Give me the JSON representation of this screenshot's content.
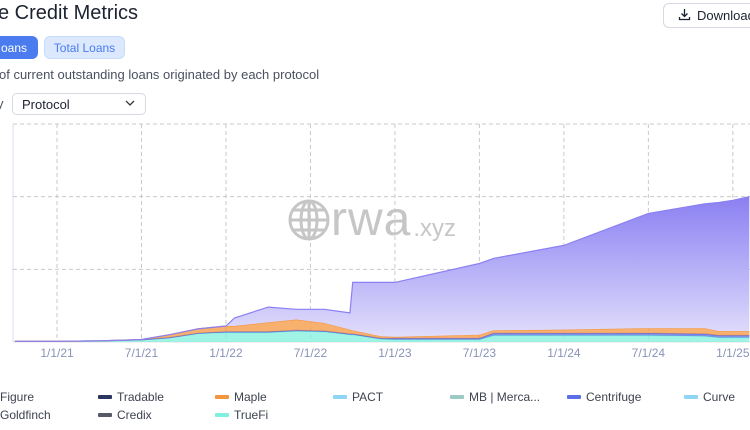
{
  "header": {
    "title": "e Credit Metrics",
    "download_label": "Download"
  },
  "tabs": [
    {
      "label": "oans",
      "active": true
    },
    {
      "label": "Total Loans",
      "active": false
    }
  ],
  "description": "of current outstanding loans originated by each protocol",
  "group_by": {
    "label": "y",
    "value": "Protocol"
  },
  "watermark": {
    "logo_text": "rwa",
    "suffix": ".xyz"
  },
  "colors": {
    "figure": "#8a80f2",
    "maple": "#f5963f",
    "truefi": "#7ff0de",
    "centrifuge": "#5d6fe6",
    "grid": "#c9c9c9"
  },
  "legend": [
    {
      "label": "Figure",
      "color": "#8a80f2"
    },
    {
      "label": "Tradable",
      "color": "#2a3560"
    },
    {
      "label": "Maple",
      "color": "#f5963f"
    },
    {
      "label": "PACT",
      "color": "#8fd6f5"
    },
    {
      "label": "MB | Merca...",
      "color": "#9cc9c4"
    },
    {
      "label": "Centrifuge",
      "color": "#5d6fe6"
    },
    {
      "label": "Curve",
      "color": "#8fd6f5"
    },
    {
      "label": "Goldfinch",
      "color": "#c9a23a"
    },
    {
      "label": "Credix",
      "color": "#555a66"
    },
    {
      "label": "TrueFi",
      "color": "#7ff0de"
    }
  ],
  "chart_data": {
    "type": "area",
    "stacked": true,
    "title": "",
    "xlabel": "",
    "ylabel": "",
    "x_ticks": [
      "1/1/21",
      "7/1/21",
      "1/1/22",
      "7/1/22",
      "1/1/23",
      "7/1/23",
      "1/1/24",
      "7/1/24",
      "1/1/25"
    ],
    "ylim": [
      0,
      3
    ],
    "y_gridlines": [
      1,
      2,
      3
    ],
    "grid": true,
    "legend_position": "bottom",
    "x": [
      "2020-10-01",
      "2021-01-01",
      "2021-04-01",
      "2021-07-01",
      "2021-09-01",
      "2021-11-01",
      "2022-01-01",
      "2022-01-19",
      "2022-04-01",
      "2022-06-01",
      "2022-08-01",
      "2022-09-25",
      "2022-10-01",
      "2022-12-01",
      "2023-01-01",
      "2023-07-01",
      "2023-08-01",
      "2024-01-01",
      "2024-07-01",
      "2024-11-01",
      "2024-12-01",
      "2025-01-01",
      "2025-02-06"
    ],
    "series": [
      {
        "name": "TrueFi",
        "color": "#7ff0de",
        "values": [
          0.01,
          0.01,
          0.015,
          0.03,
          0.06,
          0.12,
          0.13,
          0.13,
          0.13,
          0.15,
          0.14,
          0.1,
          0.1,
          0.04,
          0.03,
          0.03,
          0.09,
          0.09,
          0.09,
          0.08,
          0.06,
          0.06,
          0.06
        ]
      },
      {
        "name": "Centrifuge",
        "color": "#5d6fe6",
        "values": [
          0,
          0,
          0,
          0,
          0,
          0,
          0.01,
          0.01,
          0.01,
          0.01,
          0.01,
          0.01,
          0.01,
          0.01,
          0.02,
          0.02,
          0.03,
          0.03,
          0.03,
          0.03,
          0.03,
          0.03,
          0.03
        ]
      },
      {
        "name": "Maple",
        "color": "#f5963f",
        "values": [
          0,
          0,
          0,
          0.005,
          0.04,
          0.06,
          0.08,
          0.08,
          0.13,
          0.15,
          0.11,
          0.06,
          0.05,
          0.03,
          0.02,
          0.05,
          0.04,
          0.05,
          0.07,
          0.08,
          0.06,
          0.06,
          0.06
        ]
      },
      {
        "name": "Figure",
        "color": "#8a80f2",
        "values": [
          0,
          0,
          0,
          0,
          0,
          0,
          0,
          0.11,
          0.21,
          0.14,
          0.19,
          0.23,
          0.66,
          0.74,
          0.75,
          0.98,
          0.99,
          1.16,
          1.58,
          1.71,
          1.77,
          1.8,
          1.85
        ]
      }
    ]
  }
}
